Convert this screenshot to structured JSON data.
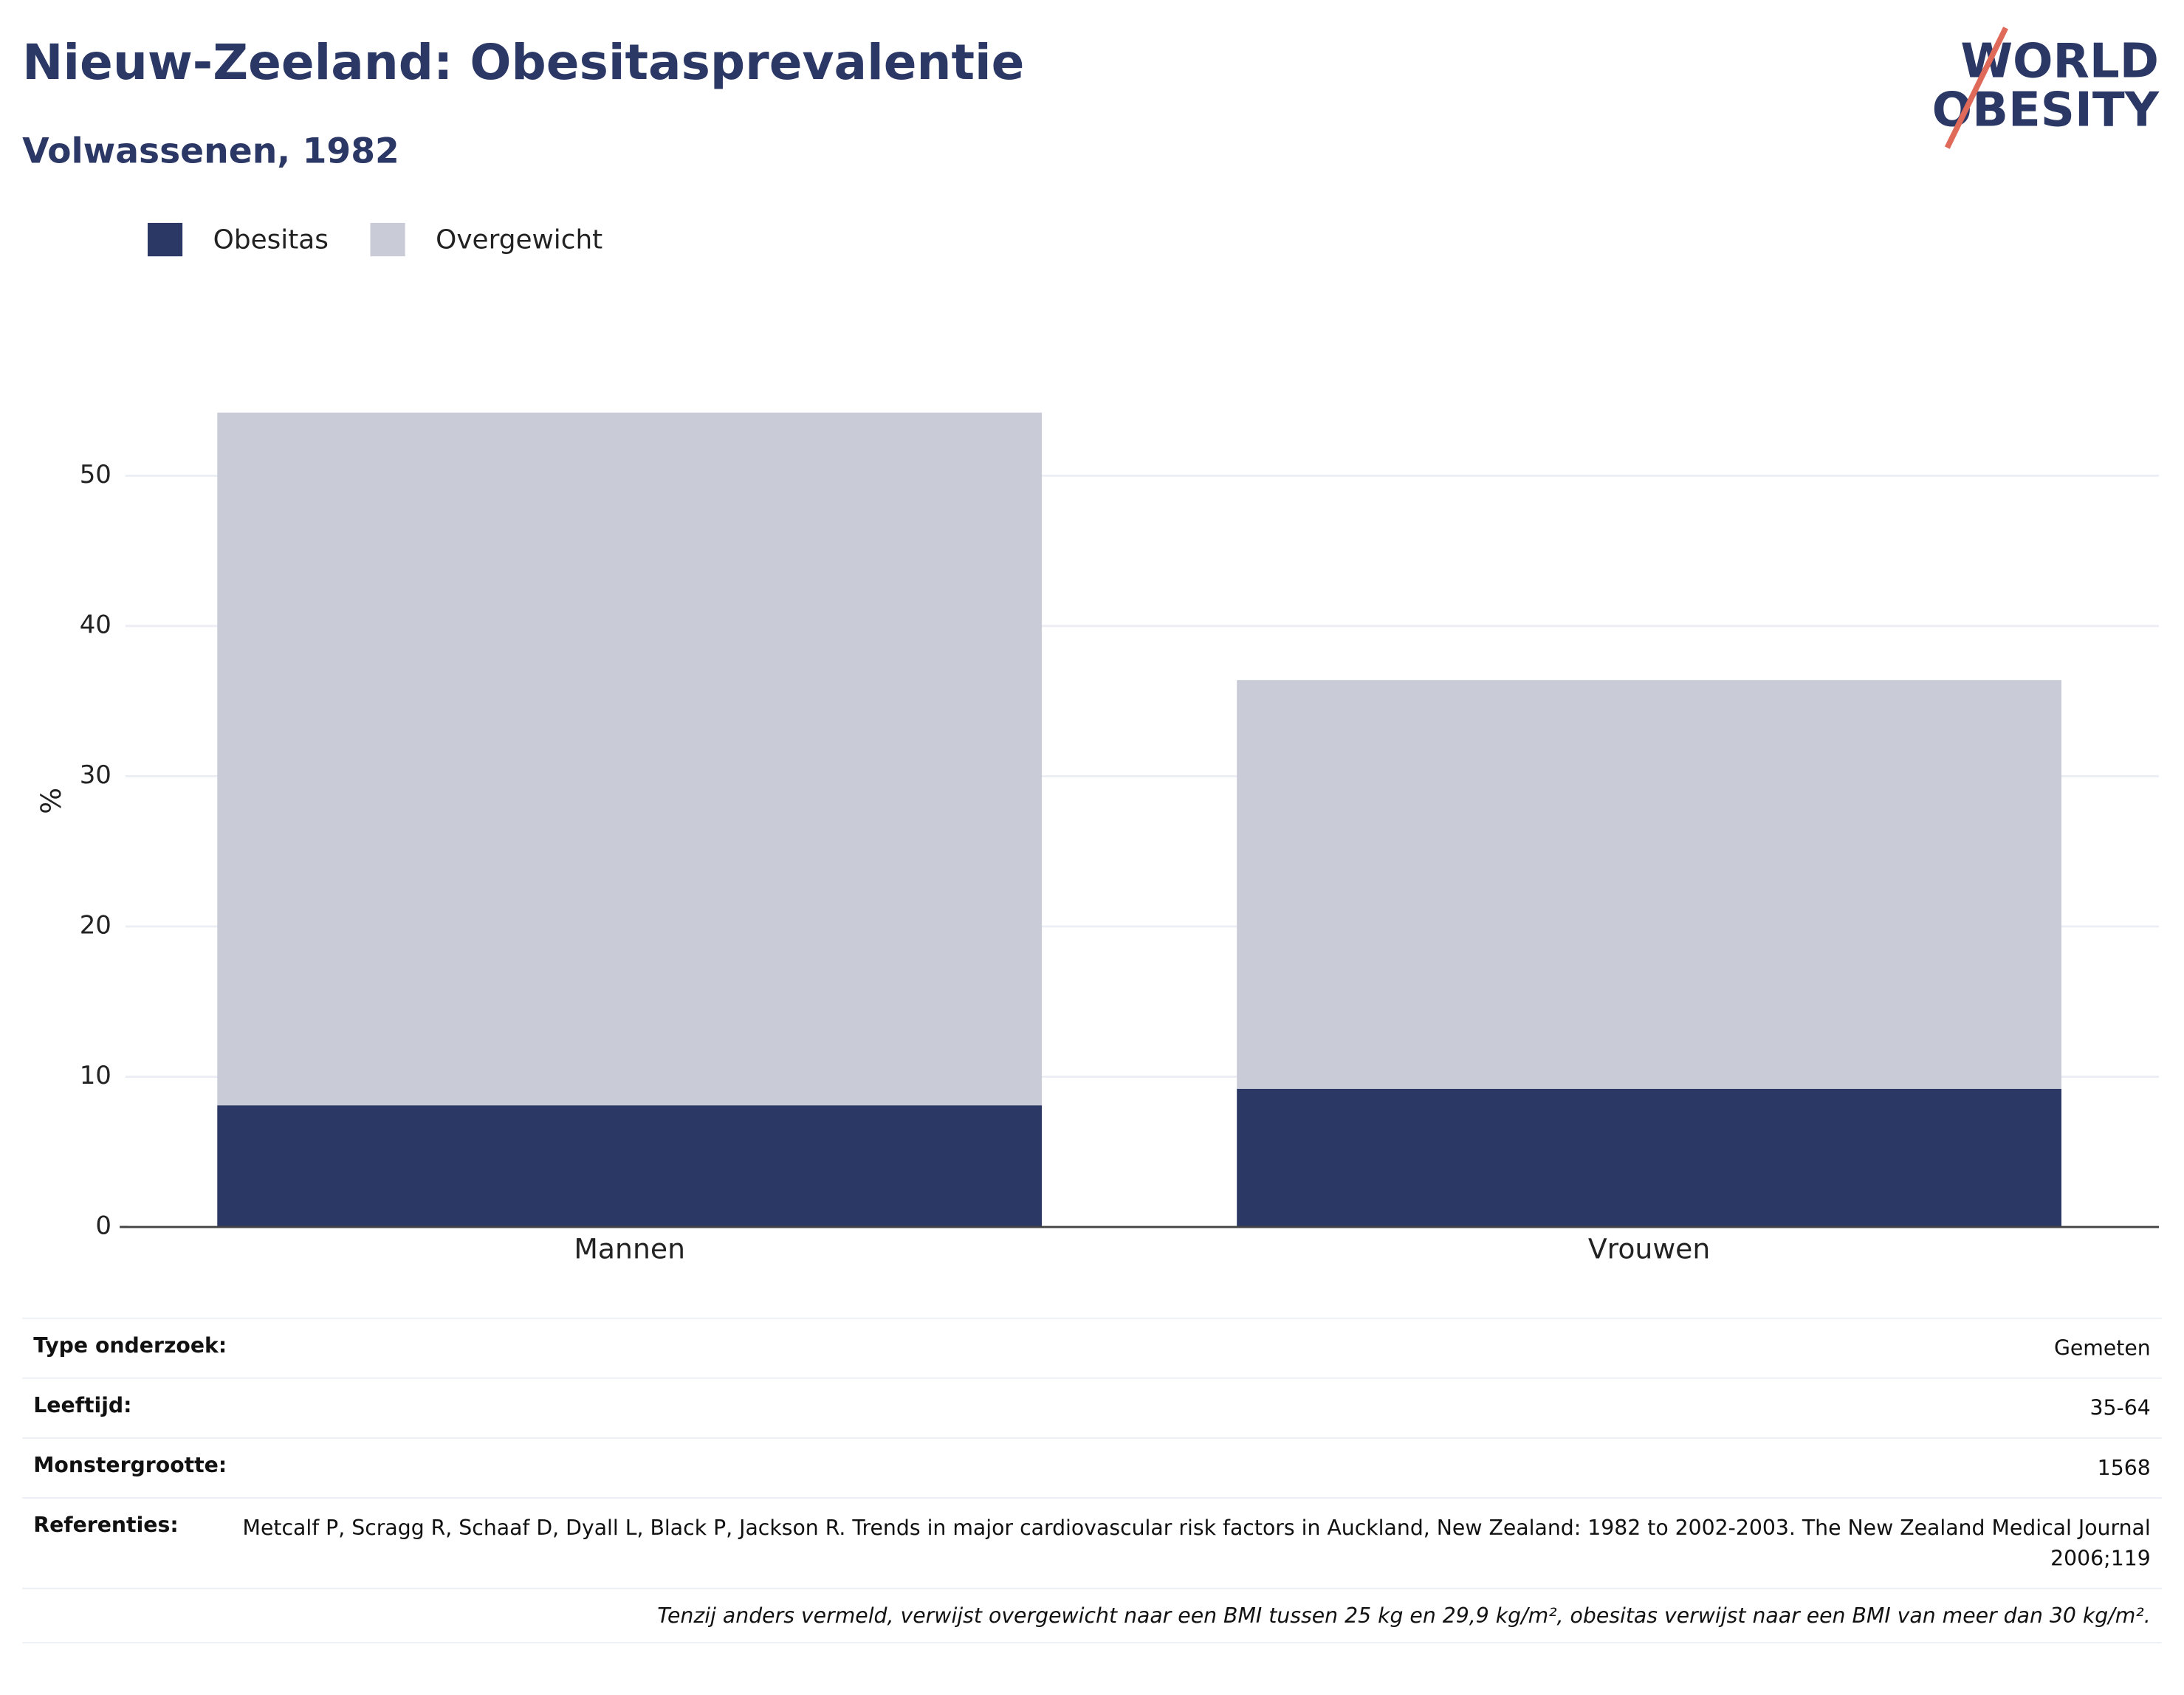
{
  "chart_data": {
    "type": "stacked-bar",
    "title": "Nieuw-Zeeland: Obesitasprevalentie",
    "subtitle": "Volwassenen, 1982",
    "y_label": "%",
    "categories": [
      "Mannen",
      "Vrouwen"
    ],
    "series": [
      {
        "name": "Obesitas",
        "color": "#2b3765",
        "values": [
          8.1,
          9.2
        ]
      },
      {
        "name": "Overgewicht",
        "color": "#c9ccd7",
        "values": [
          46.1,
          27.2
        ]
      }
    ],
    "ylim": [
      0,
      57
    ],
    "yticks": [
      0,
      10,
      20,
      30,
      40,
      50
    ],
    "grid": true,
    "legend": "top-left"
  },
  "logo": {
    "line1": "WORLD",
    "line2": "OBESITY"
  },
  "table": {
    "rows": [
      [
        "Type onderzoek:",
        "Gemeten"
      ],
      [
        "Leeftijd:",
        "35-64"
      ],
      [
        "Monstergrootte:",
        "1568"
      ],
      [
        "Referenties:",
        "Metcalf P, Scragg R, Schaaf D, Dyall L, Black P, Jackson R. Trends in major cardiovascular risk factors in Auckland, New Zealand: 1982 to 2002-2003. The New Zealand Medical Journal 2006;119"
      ]
    ]
  },
  "footnote": "Tenzij anders vermeld, verwijst overgewicht naar een BMI tussen 25 kg en 29,9 kg/m², obesitas verwijst naar een BMI van meer dan 30 kg/m²."
}
